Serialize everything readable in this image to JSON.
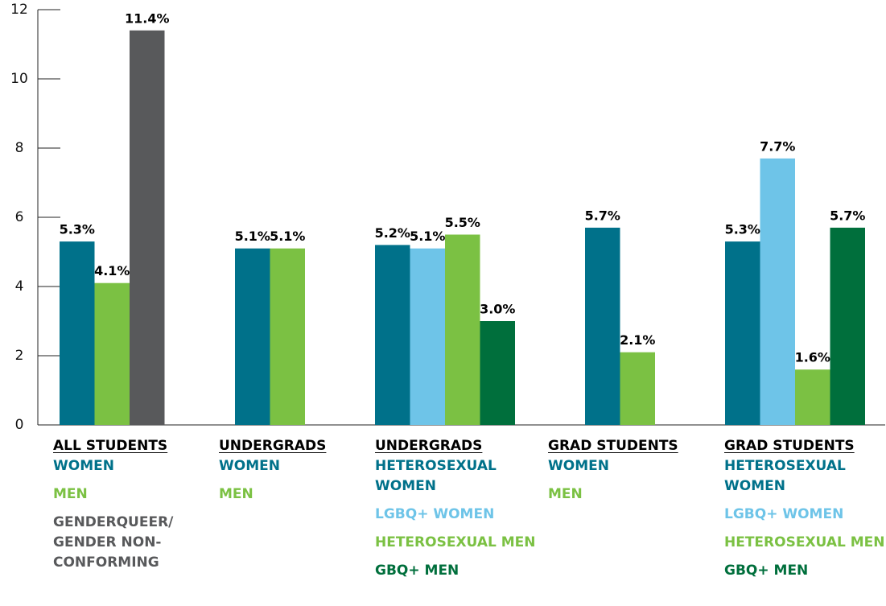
{
  "chart_data": {
    "type": "bar",
    "ylim": [
      0,
      12
    ],
    "yticks": [
      0,
      2,
      4,
      6,
      8,
      10,
      12
    ],
    "groups": [
      {
        "name": "ALL STUDENTS",
        "categories": [
          "WOMEN",
          "MEN",
          "GENDERQUEER/ GENDER NON-CONFORMING"
        ],
        "colors": [
          "#00718a",
          "#7bc143",
          "#58595b"
        ],
        "values": [
          5.3,
          4.1,
          11.4
        ],
        "value_labels": [
          "5.3%",
          "4.1%",
          "11.4%"
        ]
      },
      {
        "name": "UNDERGRADS",
        "categories": [
          "WOMEN",
          "MEN"
        ],
        "colors": [
          "#00718a",
          "#7bc143"
        ],
        "values": [
          5.1,
          5.1
        ],
        "value_labels": [
          "5.1%",
          "5.1%"
        ]
      },
      {
        "name": "UNDERGRADS",
        "categories": [
          "HETEROSEXUAL WOMEN",
          "LGBQ+ WOMEN",
          "HETEROSEXUAL MEN",
          "GBQ+ MEN"
        ],
        "colors": [
          "#00718a",
          "#6ec4e8",
          "#7bc143",
          "#006f3c"
        ],
        "values": [
          5.2,
          5.1,
          5.5,
          3.0
        ],
        "value_labels": [
          "5.2%",
          "5.1%",
          "5.5%",
          "3.0%"
        ]
      },
      {
        "name": "GRAD STUDENTS",
        "categories": [
          "WOMEN",
          "MEN"
        ],
        "colors": [
          "#00718a",
          "#7bc143"
        ],
        "values": [
          5.7,
          2.1
        ],
        "value_labels": [
          "5.7%",
          "2.1%"
        ]
      },
      {
        "name": "GRAD STUDENTS",
        "categories": [
          "HETEROSEXUAL WOMEN",
          "LGBQ+ WOMEN",
          "HETEROSEXUAL MEN",
          "GBQ+ MEN"
        ],
        "colors": [
          "#00718a",
          "#6ec4e8",
          "#7bc143",
          "#006f3c"
        ],
        "values": [
          5.3,
          7.7,
          1.6,
          5.7
        ],
        "value_labels": [
          "5.3%",
          "7.7%",
          "1.6%",
          "5.7%"
        ]
      }
    ]
  }
}
